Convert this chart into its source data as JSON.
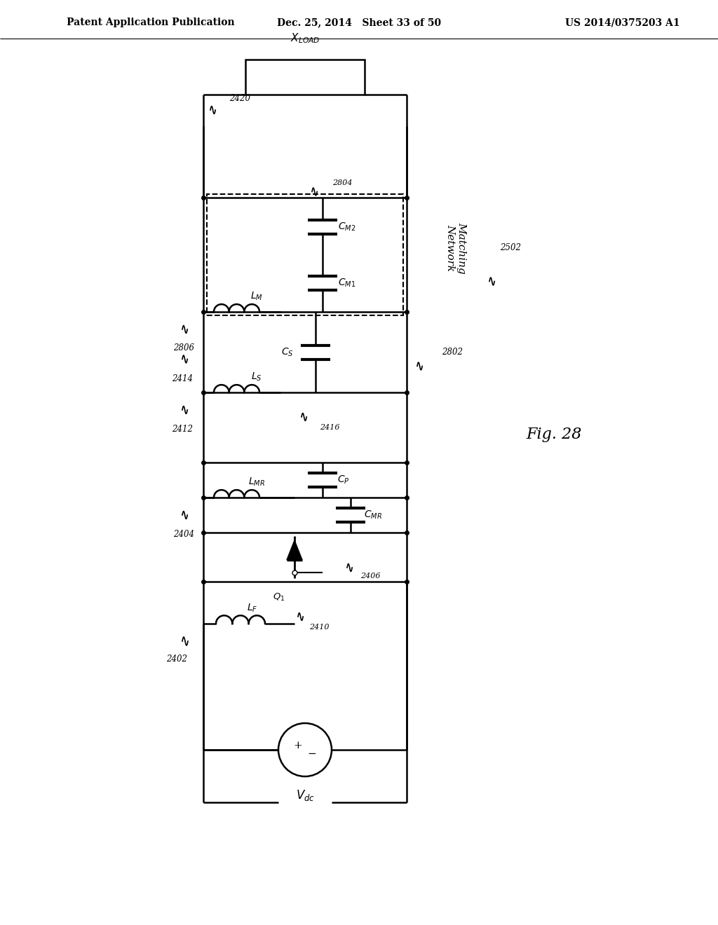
{
  "header_left": "Patent Application Publication",
  "header_center": "Dec. 25, 2014   Sheet 33 of 50",
  "header_right": "US 2014/0375203 A1",
  "fig_label": "Fig. 28"
}
